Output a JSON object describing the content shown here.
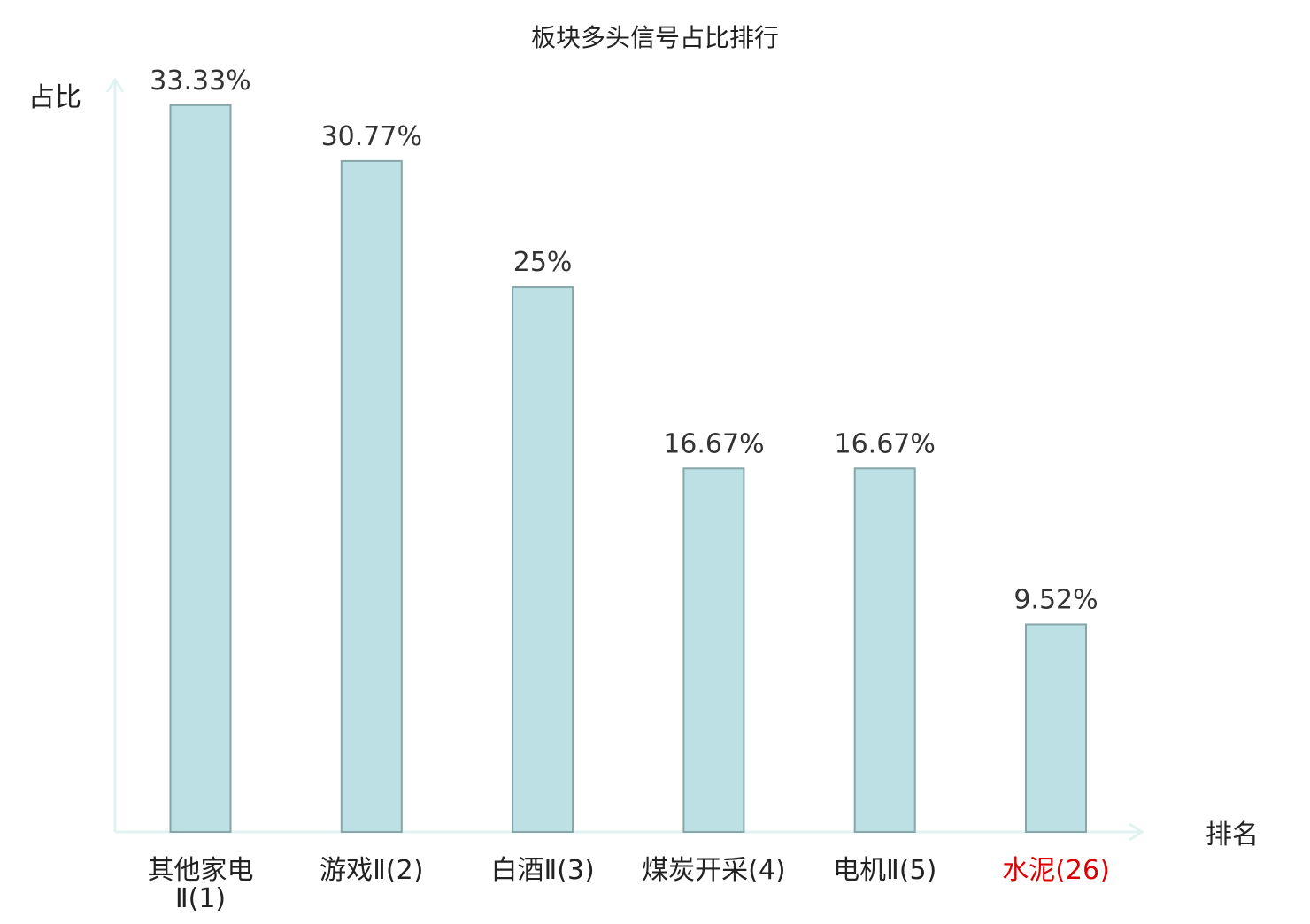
{
  "chart_data": {
    "type": "bar",
    "title": "板块多头信号占比排行",
    "ylabel": "占比",
    "xlabel": "排名",
    "categories": [
      "其他家电Ⅱ(1)",
      "游戏Ⅱ(2)",
      "白酒Ⅱ(3)",
      "煤炭开采(4)",
      "电机Ⅱ(5)",
      "水泥(26)"
    ],
    "category_lines": [
      [
        "其他家电",
        "Ⅱ(1)"
      ],
      [
        "游戏Ⅱ(2)"
      ],
      [
        "白酒Ⅱ(3)"
      ],
      [
        "煤炭开采(4)"
      ],
      [
        "电机Ⅱ(5)"
      ],
      [
        "水泥(26)"
      ]
    ],
    "values": [
      33.33,
      30.77,
      25,
      16.67,
      16.67,
      9.52
    ],
    "value_labels": [
      "33.33%",
      "30.77%",
      "25%",
      "16.67%",
      "16.67%",
      "9.52%"
    ],
    "highlight_index": 5,
    "ylim": [
      0,
      34.5
    ],
    "grid": false,
    "colors": {
      "bar_fill": "#bce0e3",
      "bar_stroke": "#86a6a8",
      "axis": "#e0f3f0",
      "label_text": "#333333",
      "tick_text": "#222222",
      "highlight_text": "#dd0000"
    }
  }
}
